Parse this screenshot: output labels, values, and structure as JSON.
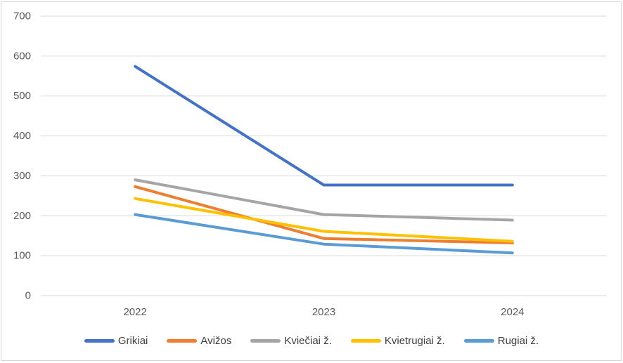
{
  "chart_data": {
    "type": "line",
    "title": "",
    "xlabel": "",
    "ylabel": "",
    "categories": [
      "2022",
      "2023",
      "2024"
    ],
    "series": [
      {
        "name": "Grikiai",
        "color": "#4472C4",
        "values": [
          574,
          277,
          277
        ]
      },
      {
        "name": "Avižos",
        "color": "#ED7D31",
        "values": [
          273,
          143,
          132
        ]
      },
      {
        "name": "Kviečiai ž.",
        "color": "#A5A5A5",
        "values": [
          290,
          203,
          189
        ]
      },
      {
        "name": "Kvietrugiai ž.",
        "color": "#FFC000",
        "values": [
          243,
          161,
          136
        ]
      },
      {
        "name": "Rugiai ž.",
        "color": "#5B9BD5",
        "values": [
          203,
          129,
          107
        ]
      }
    ],
    "ylim": [
      0,
      700
    ],
    "yticks": [
      700,
      600,
      500,
      400,
      300,
      200,
      100,
      0
    ],
    "grid": true,
    "legend_position": "bottom",
    "gridline_color": "#D9D9D9",
    "axis_label_color": "#595959",
    "legend_text_color": "#404040"
  }
}
